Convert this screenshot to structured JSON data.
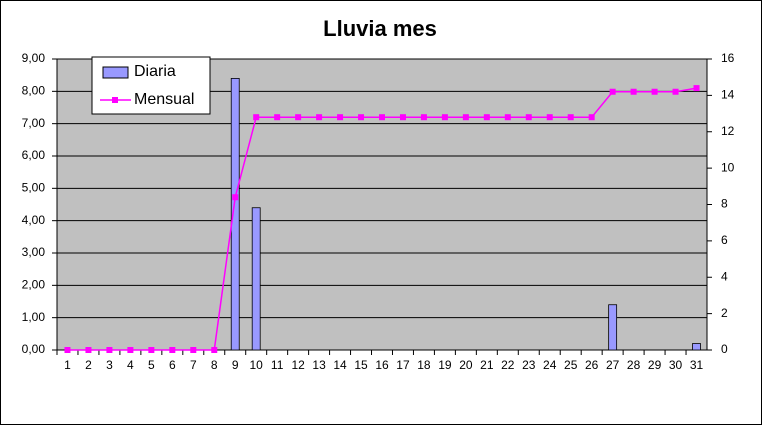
{
  "chart_data": {
    "type": "bar-line",
    "title": "Lluvia mes",
    "categories": [
      1,
      2,
      3,
      4,
      5,
      6,
      7,
      8,
      9,
      10,
      11,
      12,
      13,
      14,
      15,
      16,
      17,
      18,
      19,
      20,
      21,
      22,
      23,
      24,
      25,
      26,
      27,
      28,
      29,
      30,
      31
    ],
    "series": [
      {
        "name": "Diaria",
        "type": "bar",
        "color": "#9999ff",
        "values": [
          0,
          0,
          0,
          0,
          0,
          0,
          0,
          0,
          8.4,
          4.4,
          0,
          0,
          0,
          0,
          0,
          0,
          0,
          0,
          0,
          0,
          0,
          0,
          0,
          0,
          0,
          0,
          1.4,
          0,
          0,
          0,
          0.2
        ]
      },
      {
        "name": "Mensual",
        "type": "line",
        "axis": "y2",
        "color": "#ff00ff",
        "values": [
          0,
          0,
          0,
          0,
          0,
          0,
          0,
          0,
          8.4,
          12.8,
          12.8,
          12.8,
          12.8,
          12.8,
          12.8,
          12.8,
          12.8,
          12.8,
          12.8,
          12.8,
          12.8,
          12.8,
          12.8,
          12.8,
          12.8,
          12.8,
          14.2,
          14.2,
          14.2,
          14.2,
          14.4
        ]
      }
    ],
    "ylim": [
      0,
      9
    ],
    "yticks": [
      {
        "value": 0,
        "label": "0,00"
      },
      {
        "value": 1,
        "label": "1,00"
      },
      {
        "value": 2,
        "label": "2,00"
      },
      {
        "value": 3,
        "label": "3,00"
      },
      {
        "value": 4,
        "label": "4,00"
      },
      {
        "value": 5,
        "label": "5,00"
      },
      {
        "value": 6,
        "label": "6,00"
      },
      {
        "value": 7,
        "label": "7,00"
      },
      {
        "value": 8,
        "label": "8,00"
      },
      {
        "value": 9,
        "label": "9,00"
      }
    ],
    "y2lim": [
      0,
      16
    ],
    "y2ticks": [
      0,
      2,
      4,
      6,
      8,
      10,
      12,
      14,
      16
    ],
    "grid": true,
    "background": "#c0c0c0"
  }
}
